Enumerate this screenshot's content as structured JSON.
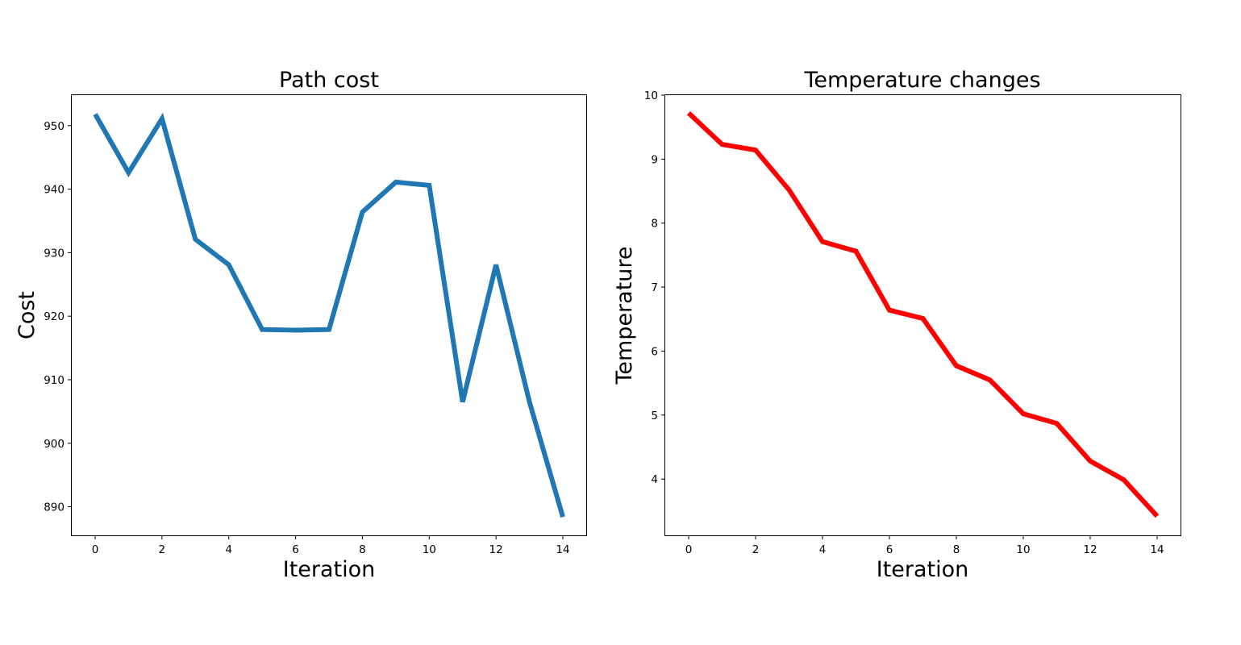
{
  "chart_data": [
    {
      "type": "line",
      "title": "Path cost",
      "xlabel": "Iteration",
      "ylabel": "Cost",
      "xlim": [
        -0.7,
        14.7
      ],
      "ylim": [
        885.5,
        954.8
      ],
      "xticks": [
        0,
        2,
        4,
        6,
        8,
        10,
        12,
        14
      ],
      "yticks": [
        890,
        900,
        910,
        920,
        930,
        940,
        950
      ],
      "grid": false,
      "series": [
        {
          "color": "#1f77b4",
          "x": [
            0,
            1,
            2,
            3,
            4,
            5,
            6,
            7,
            8,
            9,
            10,
            11,
            12,
            13,
            14
          ],
          "y": [
            951.8,
            942.6,
            951.1,
            932.1,
            928.1,
            917.9,
            917.8,
            917.9,
            936.4,
            941.1,
            940.6,
            906.5,
            928.1,
            906.5,
            888.4
          ]
        }
      ]
    },
    {
      "type": "line",
      "title": "Temperature changes",
      "xlabel": "Iteration",
      "ylabel": "Temperature",
      "xlim": [
        -0.7,
        14.7
      ],
      "ylim": [
        3.12,
        10.0
      ],
      "xticks": [
        0,
        2,
        4,
        6,
        8,
        10,
        12,
        14
      ],
      "yticks": [
        4,
        5,
        6,
        7,
        8,
        9,
        10
      ],
      "grid": false,
      "series": [
        {
          "color": "#ff0000",
          "x": [
            0,
            1,
            2,
            3,
            4,
            5,
            6,
            7,
            8,
            9,
            10,
            11,
            12,
            13,
            14
          ],
          "y": [
            9.72,
            9.23,
            9.14,
            8.52,
            7.71,
            7.56,
            6.64,
            6.51,
            5.77,
            5.55,
            5.02,
            4.87,
            4.28,
            3.99,
            3.42
          ]
        }
      ]
    }
  ]
}
